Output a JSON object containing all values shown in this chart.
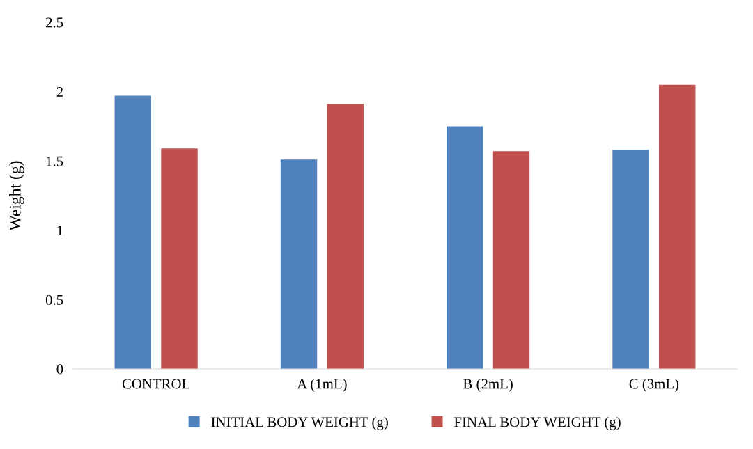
{
  "chart_data": {
    "type": "bar",
    "ylabel": "Weight (g)",
    "categories": [
      "CONTROL",
      "A (1mL)",
      "B (2mL)",
      "C (3mL)"
    ],
    "series": [
      {
        "name": "INITIAL BODY WEIGHT (g)",
        "color": "#4f81bd",
        "values": [
          1.97,
          1.51,
          1.75,
          1.58
        ]
      },
      {
        "name": "FINAL BODY WEIGHT (g)",
        "color": "#c0504d",
        "values": [
          1.59,
          1.91,
          1.57,
          2.05
        ]
      }
    ],
    "ylim": [
      0,
      2.5
    ],
    "yticks": [
      0,
      0.5,
      1,
      1.5,
      2,
      2.5
    ],
    "grid": false,
    "legend": "bottom"
  }
}
